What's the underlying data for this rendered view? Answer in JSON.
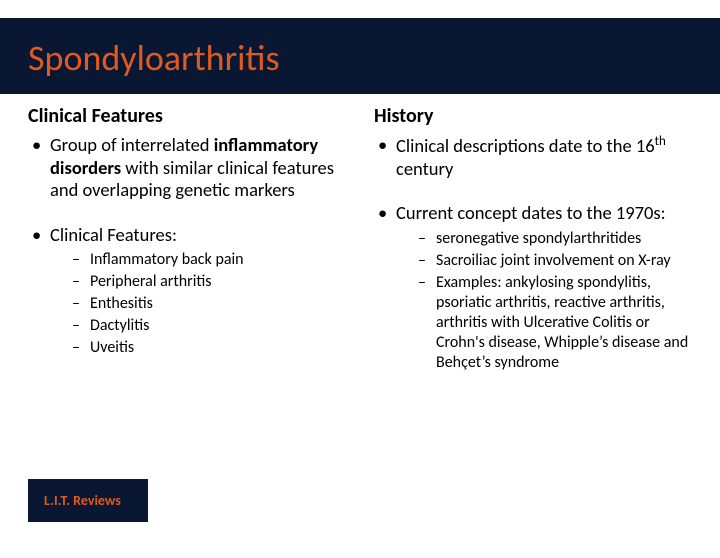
{
  "title": "Spondyloarthritis",
  "left": {
    "heading": "Clinical Features",
    "b1_pre": "Group of interrelated ",
    "b1_bold": "inflammatory disorders",
    "b1_post": " with similar clinical features and overlapping genetic markers",
    "b2": "Clinical Features:",
    "sub": {
      "s1": "Inflammatory back pain",
      "s2": "Peripheral arthritis",
      "s3": "Enthesitis",
      "s4": "Dactylitis",
      "s5": "Uveitis"
    }
  },
  "right": {
    "heading": "History",
    "b1_pre": "Clinical descriptions date to the 16",
    "b1_sup": "th",
    "b1_post": " century",
    "b2": "Current concept dates to the 1970s:",
    "sub": {
      "s1": "seronegative spondylarthritides",
      "s2": "Sacroiliac joint involvement on X-ray",
      "s3": "Examples: ankylosing spondylitis, psoriatic arthritis, reactive arthritis, arthritis with Ulcerative Colitis or Crohn's disease, Whipple’s disease and Behçet’s syndrome"
    }
  },
  "footer": "L.I.T. Reviews",
  "colors": {
    "title_bg": "#0a1733",
    "accent": "#e05a1e",
    "body_bg": "#ffffff"
  }
}
